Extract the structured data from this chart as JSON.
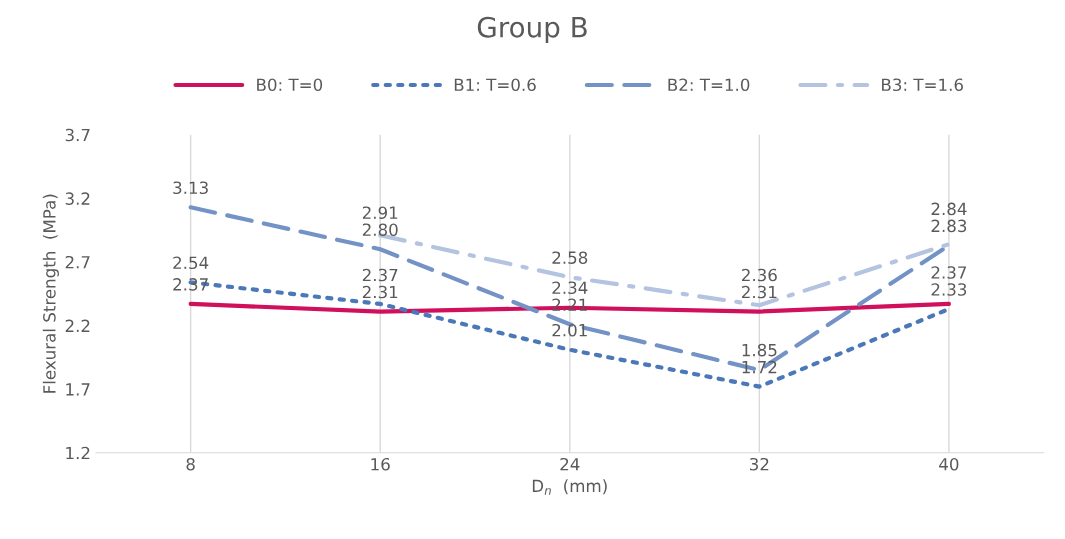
{
  "chart_data": {
    "type": "line",
    "title": "Group B",
    "xlabel": "D$_{n}$  (mm)",
    "ylabel": "Flexural Strength  (MPa)",
    "categories": [
      "8",
      "16",
      "24",
      "32",
      "40"
    ],
    "series": [
      {
        "name": "B0: T=0",
        "color": "#d0105a",
        "line_style": "solid",
        "values": [
          2.37,
          2.31,
          2.34,
          2.31,
          2.37
        ],
        "value_labels": [
          "2.37",
          "2.31",
          "2.34",
          "2.31",
          "2.37"
        ]
      },
      {
        "name": "B1: T=0.6",
        "color": "#4a78b8",
        "line_style": "dotted",
        "values": [
          2.54,
          2.37,
          2.01,
          1.72,
          2.33
        ],
        "value_labels": [
          "2.54",
          "2.37",
          "2.01",
          "1.72",
          "2.33"
        ]
      },
      {
        "name": "B2: T=1.0",
        "color": "#7393c6",
        "line_style": "dashed",
        "values": [
          3.13,
          2.8,
          2.21,
          1.85,
          2.83
        ],
        "value_labels": [
          "3.13",
          "2.80",
          "2.21",
          "1.85",
          "2.83"
        ]
      },
      {
        "name": "B3: T=1.6",
        "color": "#b4c3e0",
        "line_style": "dashdot",
        "values": [
          null,
          2.91,
          2.58,
          2.36,
          2.84
        ],
        "value_labels": [
          null,
          "2.91",
          "2.58",
          "2.36",
          "2.84"
        ]
      }
    ],
    "ylim": [
      1.2,
      3.7
    ],
    "yticks": [
      {
        "value": 1.2,
        "label": "1.2"
      },
      {
        "value": 1.7,
        "label": "1.7"
      },
      {
        "value": 2.2,
        "label": "2.2"
      },
      {
        "value": 2.7,
        "label": "2.7"
      },
      {
        "value": 3.2,
        "label": "3.2"
      },
      {
        "value": 3.7,
        "label": "3.7"
      }
    ],
    "grid": "x",
    "legend": "top",
    "marker": "none"
  }
}
